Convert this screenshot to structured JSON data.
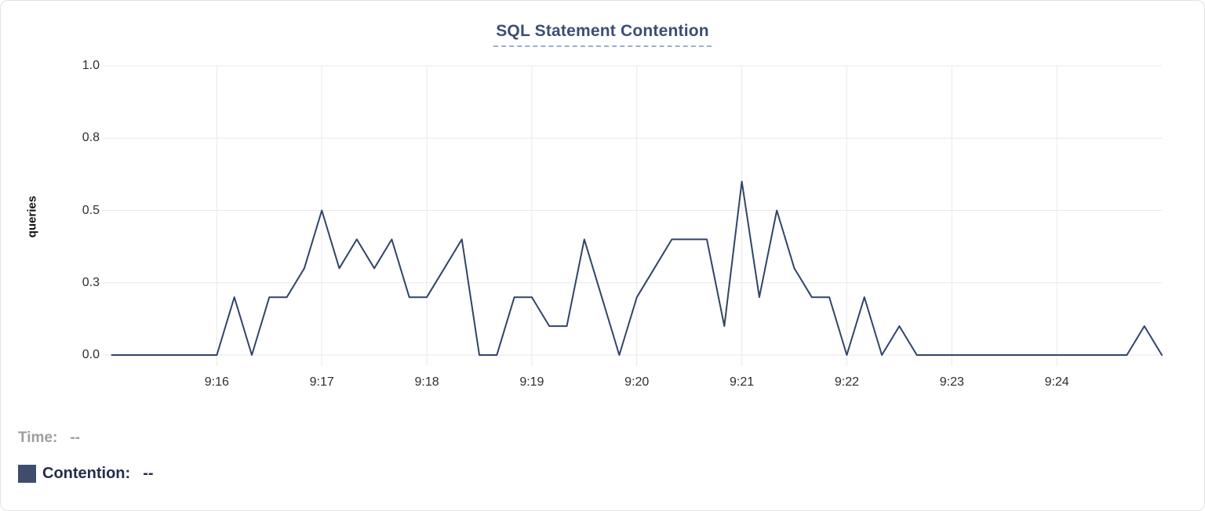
{
  "header": {
    "title_color": "#3b4e74",
    "underline_color": "#9daecc"
  },
  "legend": {
    "time_label": "Time:",
    "time_value": "--",
    "series_label": "Contention:",
    "series_value": "--",
    "swatch_color": "#3d4d6b",
    "time_text_color": "#9e9ea2",
    "series_text_color": "#222e4d"
  },
  "chart_data": {
    "type": "line",
    "title": "SQL Statement Contention",
    "xlabel": "",
    "ylabel": "queries",
    "ylim": [
      0,
      1.0
    ],
    "grid": true,
    "legend_position": "bottom-left",
    "line_color": "#304569",
    "grid_color": "#e9e9e9",
    "y_ticks": [
      {
        "value": 0,
        "label": "0.0"
      },
      {
        "value": 0.25,
        "label": "0.3"
      },
      {
        "value": 0.5,
        "label": "0.5"
      },
      {
        "value": 0.75,
        "label": "0.8"
      },
      {
        "value": 1.0,
        "label": "1.0"
      }
    ],
    "x_span_minutes": 10,
    "x_start_time": "9:15:00",
    "x_end_time": "9:25:00",
    "x_ticks": [
      {
        "offset_min": 1,
        "label": "9:16"
      },
      {
        "offset_min": 2,
        "label": "9:17"
      },
      {
        "offset_min": 3,
        "label": "9:18"
      },
      {
        "offset_min": 4,
        "label": "9:19"
      },
      {
        "offset_min": 5,
        "label": "9:20"
      },
      {
        "offset_min": 6,
        "label": "9:21"
      },
      {
        "offset_min": 7,
        "label": "9:22"
      },
      {
        "offset_min": 8,
        "label": "9:23"
      },
      {
        "offset_min": 9,
        "label": "9:24"
      }
    ],
    "series": [
      {
        "name": "Contention",
        "unit": "queries",
        "interval_seconds": 10,
        "start_time": "9:15:00",
        "values": [
          0,
          0,
          0,
          0,
          0,
          0,
          0,
          0.2,
          0,
          0.2,
          0.2,
          0.3,
          0.5,
          0.3,
          0.4,
          0.3,
          0.4,
          0.2,
          0.2,
          0.3,
          0.4,
          0,
          0,
          0.2,
          0.2,
          0.1,
          0.1,
          0.4,
          0.2,
          0,
          0.2,
          0.3,
          0.4,
          0.4,
          0.4,
          0.1,
          0.6,
          0.2,
          0.5,
          0.3,
          0.2,
          0.2,
          0,
          0.2,
          0,
          0.1,
          0,
          0,
          0,
          0,
          0,
          0,
          0,
          0,
          0,
          0,
          0,
          0,
          0,
          0.1,
          0
        ]
      }
    ]
  }
}
